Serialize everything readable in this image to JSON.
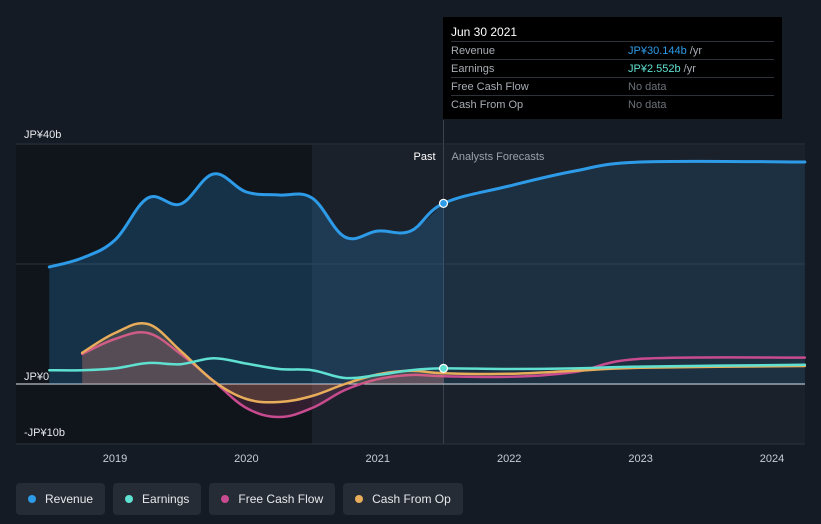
{
  "colors": {
    "revenue": "#2d9be8",
    "earnings": "#5fe0d0",
    "free_cash_flow": "#c84b8f",
    "cash_from_op": "#e8ad5a",
    "forecast_bg": "#1b212b",
    "past_bg": "#10151c"
  },
  "tooltip": {
    "date": "Jun 30 2021",
    "rows": [
      {
        "label": "Revenue",
        "value": "JP¥30.144b",
        "unit": "/yr",
        "color": "#2d9be8"
      },
      {
        "label": "Earnings",
        "value": "JP¥2.552b",
        "unit": "/yr",
        "color": "#5fe0d0"
      },
      {
        "label": "Free Cash Flow",
        "value": "No data",
        "unit": "",
        "color": ""
      },
      {
        "label": "Cash From Op",
        "value": "No data",
        "unit": "",
        "color": ""
      }
    ]
  },
  "legend": [
    {
      "label": "Revenue",
      "color": "#2d9be8"
    },
    {
      "label": "Earnings",
      "color": "#5fe0d0"
    },
    {
      "label": "Free Cash Flow",
      "color": "#c84b8f"
    },
    {
      "label": "Cash From Op",
      "color": "#e8ad5a"
    }
  ],
  "chart_data": {
    "type": "line",
    "title": "",
    "xlabel": "",
    "ylabel": "",
    "ylim": [
      -10,
      40
    ],
    "y_tick_labels": [
      {
        "value": 40,
        "label": "JP¥40b"
      },
      {
        "value": 0,
        "label": "JP¥0"
      },
      {
        "value": -10,
        "label": "-JP¥10b"
      }
    ],
    "x_ticks": [
      2019,
      2020,
      2021,
      2022,
      2023,
      2024
    ],
    "xlim": [
      2018.25,
      2024.25
    ],
    "past_label": "Past",
    "forecast_label": "Analysts Forecasts",
    "divider_x": 2021.5,
    "shaded_past_start": 2020.5,
    "series": [
      {
        "name": "Revenue",
        "key": "revenue",
        "area": true,
        "marker_x": 2021.5,
        "points": [
          [
            2018.5,
            19.5
          ],
          [
            2018.75,
            21
          ],
          [
            2019.0,
            24
          ],
          [
            2019.25,
            31
          ],
          [
            2019.5,
            30
          ],
          [
            2019.75,
            35
          ],
          [
            2020.0,
            32
          ],
          [
            2020.25,
            31.5
          ],
          [
            2020.5,
            31
          ],
          [
            2020.75,
            24.5
          ],
          [
            2021.0,
            25.5
          ],
          [
            2021.25,
            25.5
          ],
          [
            2021.5,
            30.1
          ],
          [
            2022.0,
            33
          ],
          [
            2022.5,
            35.5
          ],
          [
            2023.0,
            37
          ],
          [
            2024.25,
            37
          ]
        ]
      },
      {
        "name": "Earnings",
        "key": "earnings",
        "area": false,
        "marker_x": 2021.5,
        "points": [
          [
            2018.5,
            2.3
          ],
          [
            2018.75,
            2.3
          ],
          [
            2019.0,
            2.6
          ],
          [
            2019.25,
            3.5
          ],
          [
            2019.5,
            3.3
          ],
          [
            2019.75,
            4.3
          ],
          [
            2020.0,
            3.4
          ],
          [
            2020.25,
            2.5
          ],
          [
            2020.5,
            2.3
          ],
          [
            2020.75,
            1
          ],
          [
            2021.0,
            1.5
          ],
          [
            2021.25,
            2.3
          ],
          [
            2021.5,
            2.6
          ],
          [
            2022.0,
            2.5
          ],
          [
            2022.5,
            2.6
          ],
          [
            2023.0,
            2.9
          ],
          [
            2024.25,
            3.2
          ]
        ]
      },
      {
        "name": "Free Cash Flow",
        "key": "free_cash_flow",
        "area": true,
        "marker_x": null,
        "points": [
          [
            2018.75,
            5
          ],
          [
            2019.0,
            7.5
          ],
          [
            2019.25,
            8.5
          ],
          [
            2019.5,
            5
          ],
          [
            2019.75,
            0.5
          ],
          [
            2020.0,
            -4
          ],
          [
            2020.25,
            -5.5
          ],
          [
            2020.5,
            -4
          ],
          [
            2020.75,
            -1
          ],
          [
            2021.0,
            0.8
          ],
          [
            2021.25,
            1.5
          ],
          [
            2021.5,
            1.3
          ],
          [
            2022.0,
            1.2
          ],
          [
            2022.5,
            2
          ],
          [
            2023.0,
            4.2
          ],
          [
            2024.25,
            4.4
          ]
        ]
      },
      {
        "name": "Cash From Op",
        "key": "cash_from_op",
        "area": true,
        "marker_x": null,
        "points": [
          [
            2018.75,
            5.2
          ],
          [
            2019.0,
            8.5
          ],
          [
            2019.25,
            10
          ],
          [
            2019.5,
            5.5
          ],
          [
            2019.75,
            0.5
          ],
          [
            2020.0,
            -2.5
          ],
          [
            2020.25,
            -3
          ],
          [
            2020.5,
            -2
          ],
          [
            2020.75,
            0
          ],
          [
            2021.0,
            1.6
          ],
          [
            2021.25,
            2.2
          ],
          [
            2021.5,
            1.8
          ],
          [
            2022.0,
            1.7
          ],
          [
            2022.5,
            2.2
          ],
          [
            2023.0,
            2.7
          ],
          [
            2024.25,
            3
          ]
        ]
      }
    ]
  }
}
